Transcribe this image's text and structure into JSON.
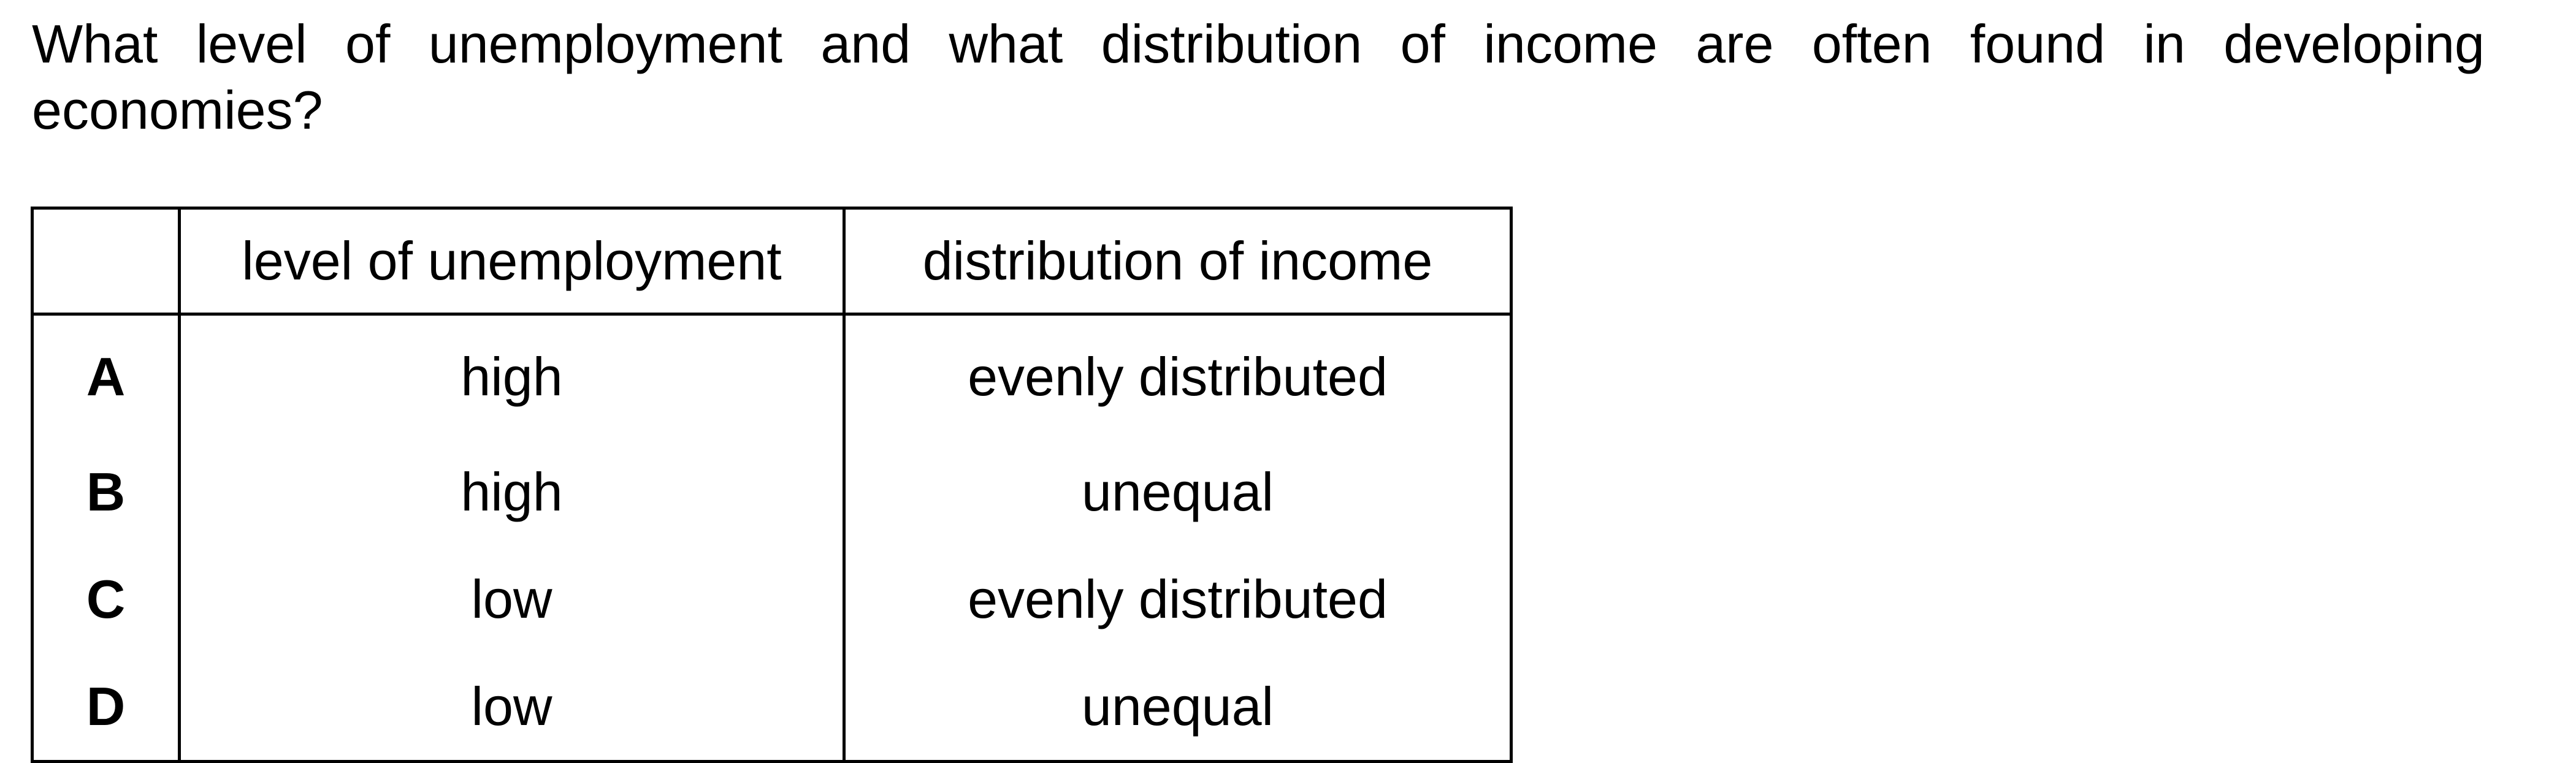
{
  "question": "What level of unemployment and what distribution of income are often found in developing economies?",
  "table": {
    "headers": [
      "",
      "level of unemployment",
      "distribution of income"
    ],
    "rows": [
      {
        "key": "A",
        "unemployment": "high",
        "income": "evenly distributed"
      },
      {
        "key": "B",
        "unemployment": "high",
        "income": "unequal"
      },
      {
        "key": "C",
        "unemployment": "low",
        "income": "evenly distributed"
      },
      {
        "key": "D",
        "unemployment": "low",
        "income": "unequal"
      }
    ]
  }
}
